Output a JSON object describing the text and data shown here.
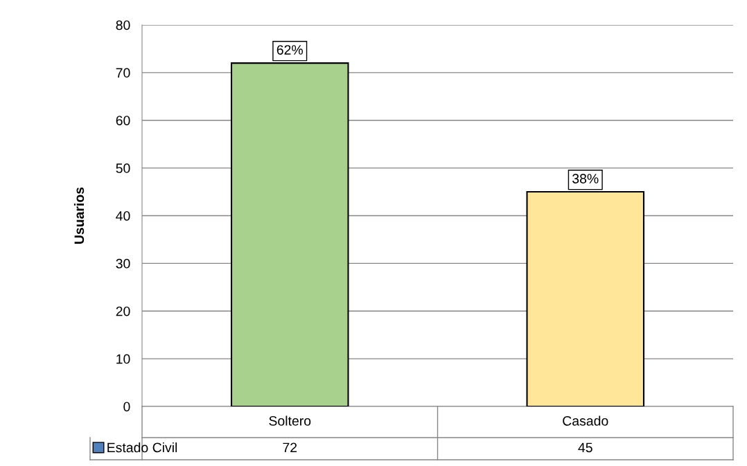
{
  "chart_data": {
    "type": "bar",
    "ylabel": "Usuarios",
    "categories": [
      "Soltero",
      "Casado"
    ],
    "series": [
      {
        "name": "Estado Civil",
        "color": "#4f81bd",
        "colors": [
          "#a9d18e",
          "#ffe699"
        ],
        "values": [
          72,
          45
        ]
      }
    ],
    "ylim": [
      0,
      80
    ],
    "yticks": [
      0,
      10,
      20,
      30,
      40,
      50,
      60,
      70,
      80
    ],
    "annotations": [
      {
        "text": "62%",
        "x": "Soltero",
        "y": 72
      },
      {
        "text": "38%",
        "x": "Casado",
        "y": 45
      }
    ],
    "grid": "y",
    "data_labels": true,
    "legend": "bottom"
  }
}
